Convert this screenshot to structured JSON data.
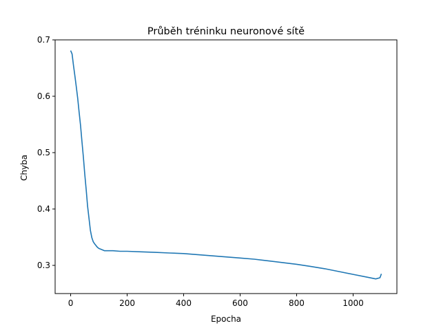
{
  "chart_data": {
    "type": "line",
    "title": "Průběh tréninku neuronové sítě",
    "xlabel": "Epocha",
    "ylabel": "Chyba",
    "xlim": [
      -55,
      1155
    ],
    "ylim": [
      0.25,
      0.7
    ],
    "xticks": [
      0,
      200,
      400,
      600,
      800,
      1000
    ],
    "yticks": [
      0.3,
      0.4,
      0.5,
      0.6,
      0.7
    ],
    "ytick_labels": [
      "0.3",
      "0.4",
      "0.5",
      "0.6",
      "0.7"
    ],
    "grid": false,
    "series": [
      {
        "color": "#1f77b4",
        "x": [
          0,
          5,
          10,
          15,
          20,
          25,
          30,
          35,
          40,
          45,
          50,
          55,
          60,
          65,
          70,
          75,
          80,
          85,
          90,
          95,
          100,
          110,
          120,
          130,
          150,
          175,
          200,
          250,
          300,
          350,
          400,
          450,
          500,
          550,
          600,
          650,
          700,
          750,
          800,
          850,
          900,
          950,
          1000,
          1050,
          1080,
          1095,
          1100
        ],
        "y": [
          0.681,
          0.675,
          0.655,
          0.636,
          0.617,
          0.596,
          0.572,
          0.548,
          0.52,
          0.492,
          0.462,
          0.434,
          0.405,
          0.383,
          0.362,
          0.349,
          0.342,
          0.338,
          0.335,
          0.332,
          0.33,
          0.328,
          0.326,
          0.326,
          0.326,
          0.325,
          0.325,
          0.324,
          0.323,
          0.322,
          0.321,
          0.319,
          0.317,
          0.315,
          0.313,
          0.311,
          0.308,
          0.305,
          0.302,
          0.298,
          0.294,
          0.289,
          0.284,
          0.279,
          0.276,
          0.278,
          0.285
        ]
      }
    ]
  }
}
